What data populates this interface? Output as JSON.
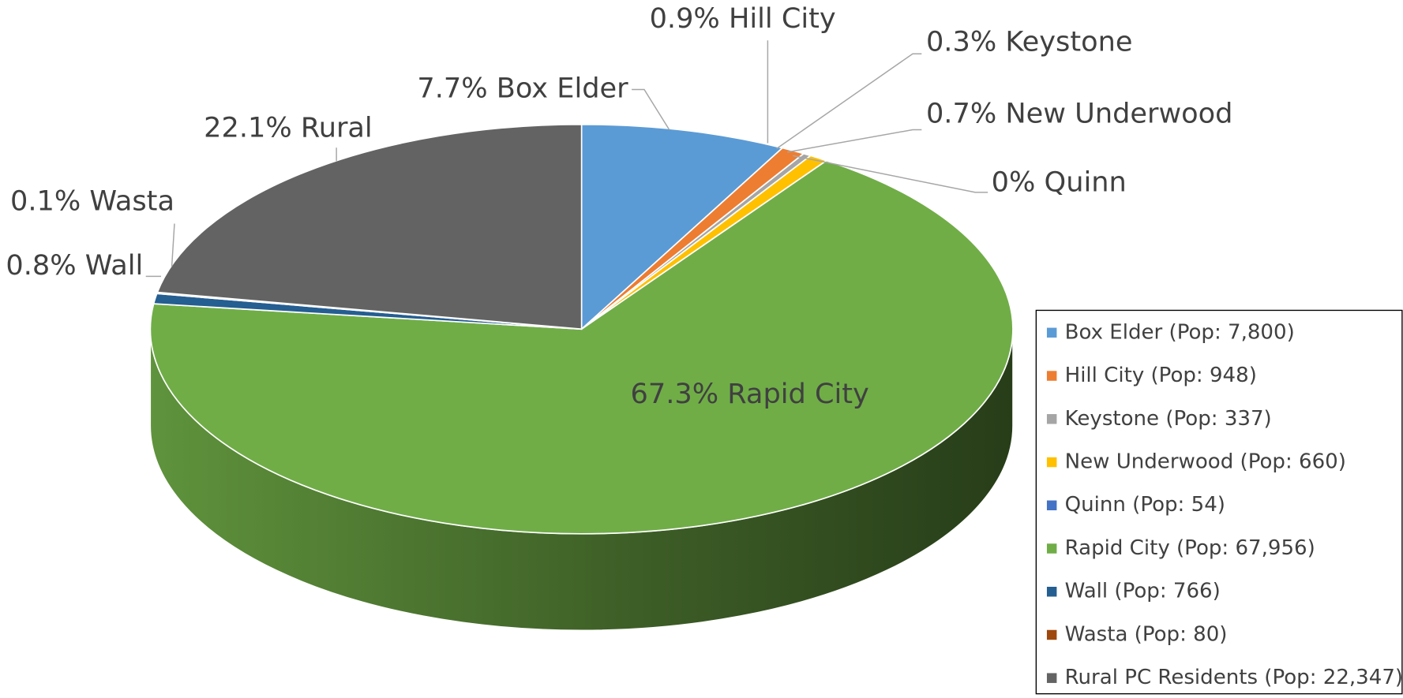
{
  "chart_data": {
    "type": "pie",
    "categories": [
      "Box Elder (Pop: 7,800)",
      "Hill City (Pop: 948)",
      "Keystone (Pop: 337)",
      "New Underwood (Pop: 660)",
      "Quinn (Pop: 54)",
      "Rapid City (Pop: 67,956)",
      "Wall (Pop: 766)",
      "Wasta (Pop: 80)",
      "Rural PC Residents (Pop: 22,347)"
    ],
    "values": [
      7.7,
      0.9,
      0.3,
      0.7,
      0,
      67.3,
      0.8,
      0.1,
      22.1
    ],
    "value_labels": [
      "7.7% Box Elder",
      "0.9% Hill City",
      "0.3% Keystone",
      "0.7% New Underwood",
      "0% Quinn",
      "67.3% Rapid City",
      "0.8% Wall",
      "0.1% Wasta",
      "22.1% Rural"
    ],
    "colors": [
      "#5b9bd5",
      "#ed7d31",
      "#a5a5a5",
      "#ffc000",
      "#4472c4",
      "#70ad47",
      "#255e91",
      "#9e480e",
      "#636363"
    ],
    "legend": "right"
  }
}
